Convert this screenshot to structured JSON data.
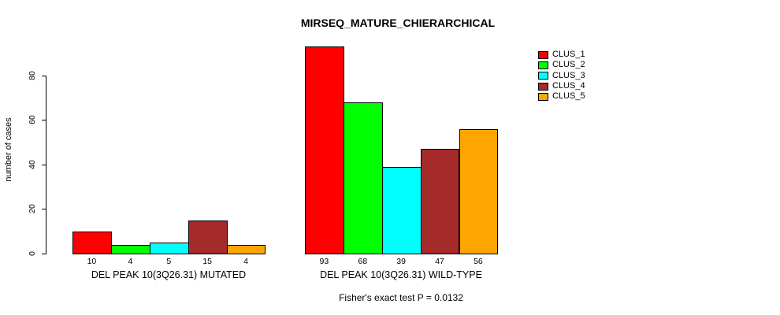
{
  "chart_data": {
    "type": "bar",
    "title": "MIRSEQ_MATURE_CHIERARCHICAL",
    "ylabel": "number of cases",
    "xlabel": "",
    "ylim": [
      0,
      80
    ],
    "yticks": [
      0,
      20,
      40,
      60,
      80
    ],
    "grid": false,
    "legend_position": "top-right",
    "categories": [
      "DEL PEAK 10(3Q26.31) MUTATED",
      "DEL PEAK 10(3Q26.31) WILD-TYPE"
    ],
    "series": [
      {
        "name": "CLUS_1",
        "color": "#ff0000",
        "values": [
          10,
          93
        ]
      },
      {
        "name": "CLUS_2",
        "color": "#00ff00",
        "values": [
          4,
          68
        ]
      },
      {
        "name": "CLUS_3",
        "color": "#00ffff",
        "values": [
          5,
          39
        ]
      },
      {
        "name": "CLUS_4",
        "color": "#a52a2a",
        "values": [
          15,
          47
        ]
      },
      {
        "name": "CLUS_5",
        "color": "#ffa500",
        "values": [
          4,
          56
        ]
      }
    ],
    "bar_value_labels": [
      [
        10,
        4,
        5,
        15,
        4
      ],
      [
        93,
        68,
        39,
        47,
        56
      ]
    ],
    "annotation": "Fisher's exact test P = 0.0132"
  }
}
